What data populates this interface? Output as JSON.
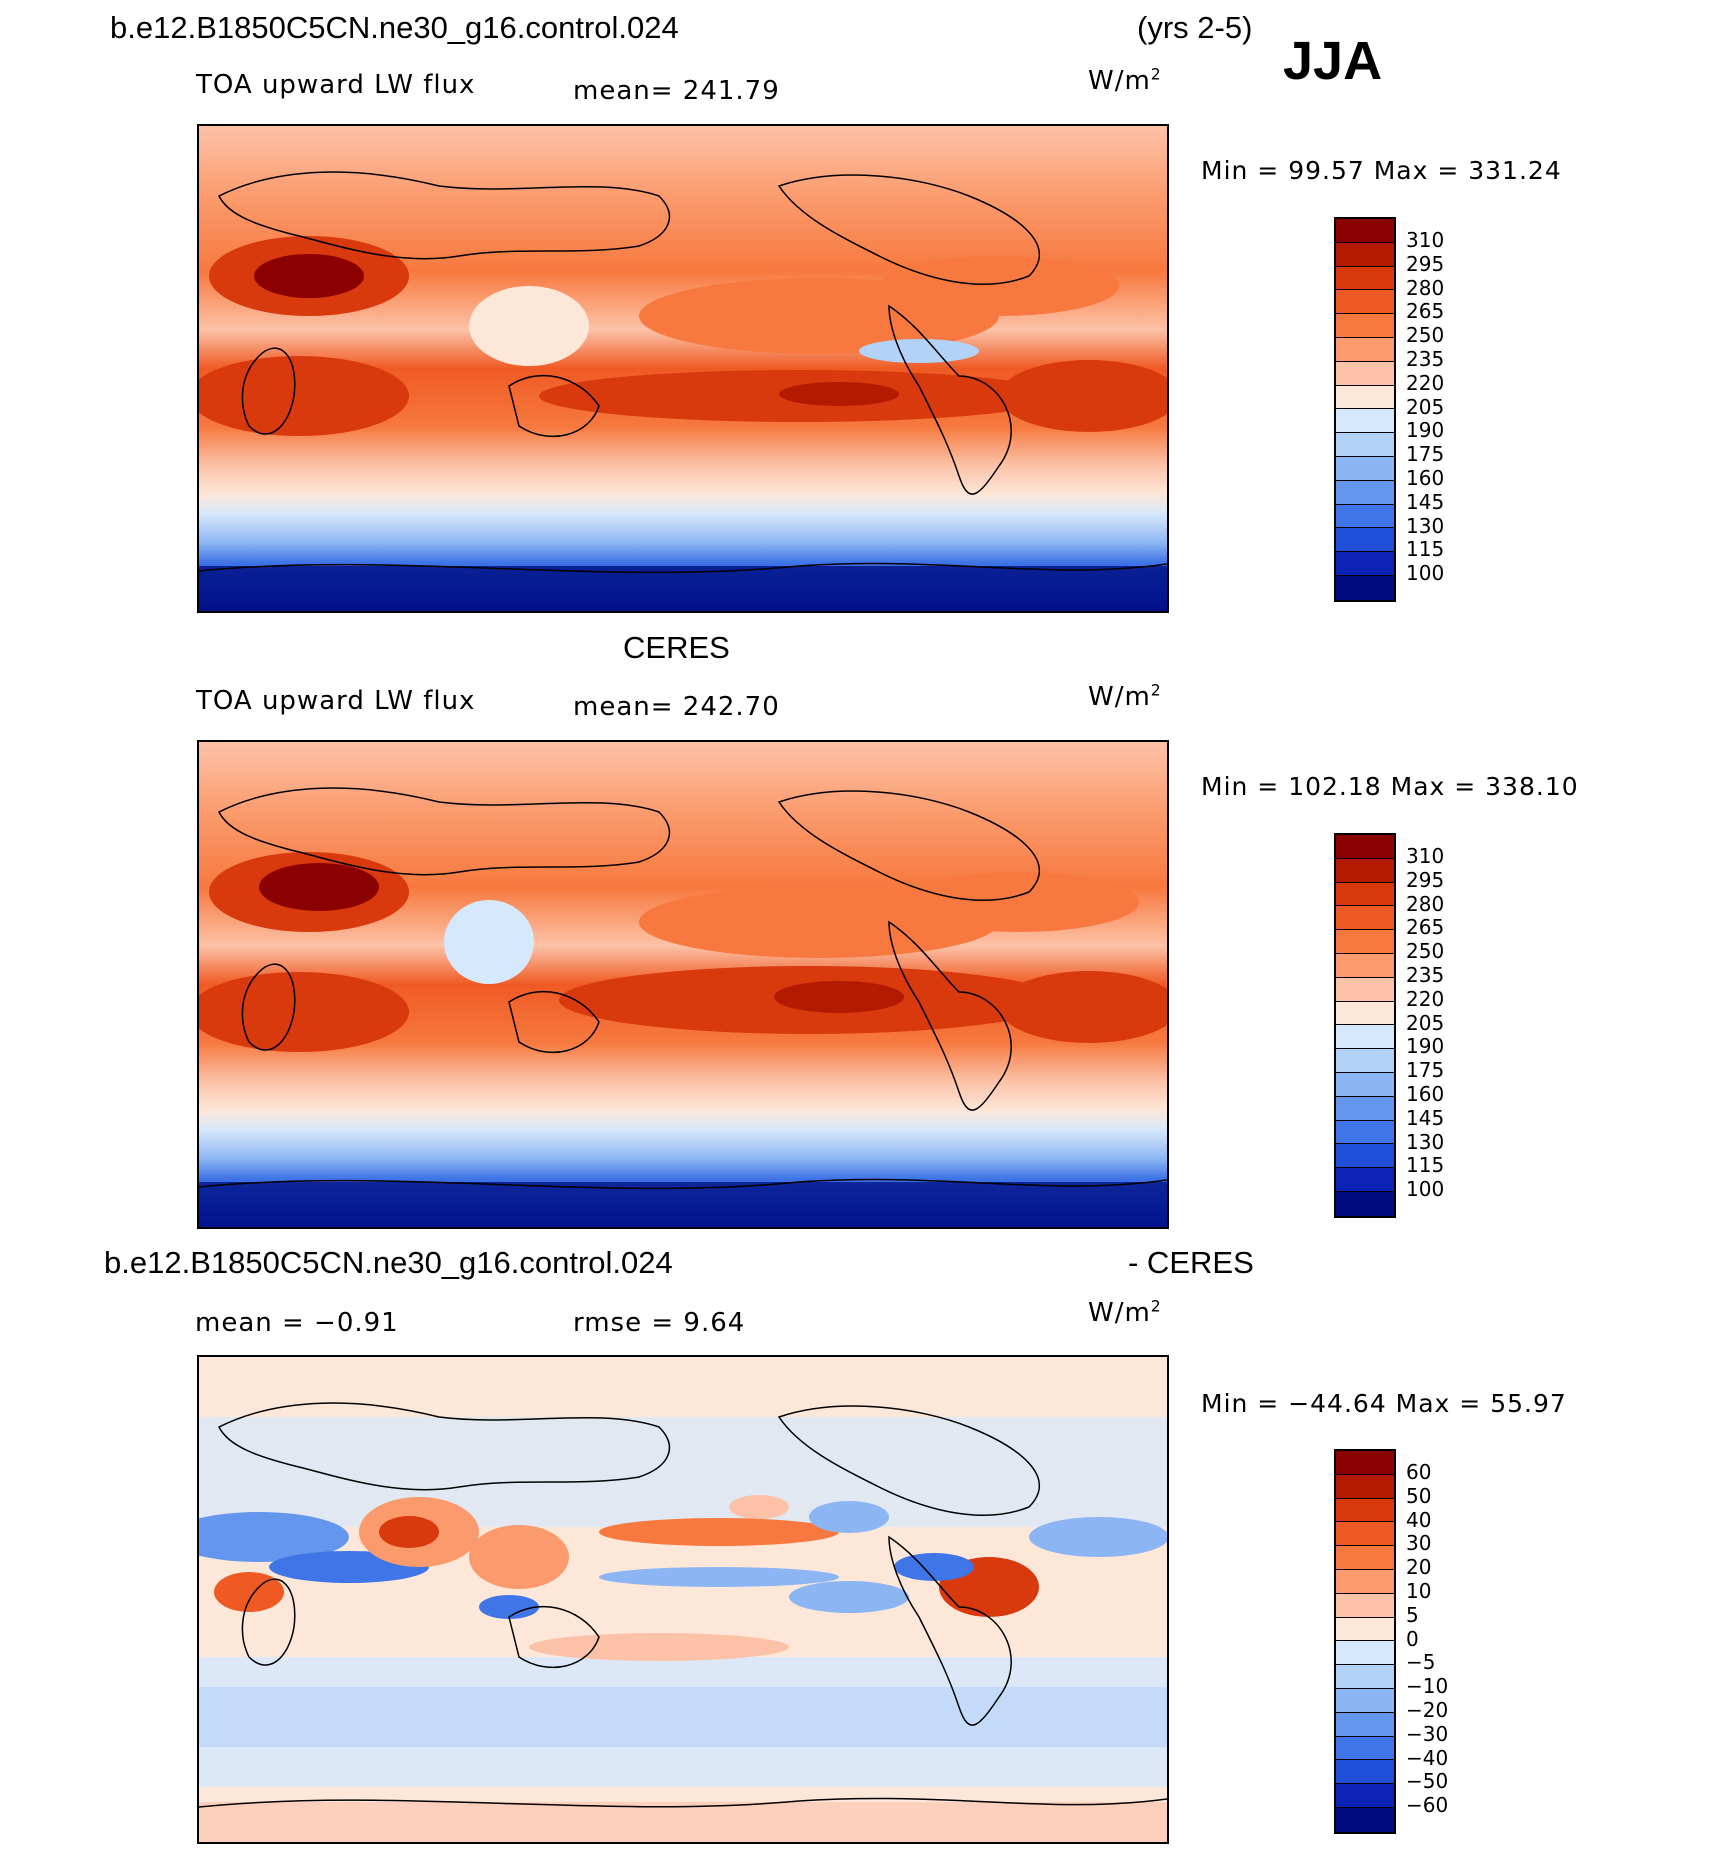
{
  "header": {
    "case_name": "b.e12.B1850C5CN.ne30_g16.control.024",
    "years": "(yrs 2-5)",
    "season": "JJA"
  },
  "panels": [
    {
      "id": "model",
      "title": "",
      "variable": "TOA upward LW flux",
      "mean_label": "mean= 241.79",
      "units": "W/m",
      "units_exp": "2",
      "minmax": "Min =   99.57 Max = 331.24",
      "colorbar_labels": [
        "310",
        "295",
        "280",
        "265",
        "250",
        "235",
        "220",
        "205",
        "190",
        "175",
        "160",
        "145",
        "130",
        "115",
        "100"
      ]
    },
    {
      "id": "obs",
      "title": "CERES",
      "variable": "TOA upward LW flux",
      "mean_label": "mean= 242.70",
      "units": "W/m",
      "units_exp": "2",
      "minmax": "Min = 102.18 Max = 338.10",
      "colorbar_labels": [
        "310",
        "295",
        "280",
        "265",
        "250",
        "235",
        "220",
        "205",
        "190",
        "175",
        "160",
        "145",
        "130",
        "115",
        "100"
      ]
    },
    {
      "id": "diff",
      "title_left": "b.e12.B1850C5CN.ne30_g16.control.024",
      "title_right": "- CERES",
      "mean_label": "mean =   −0.91",
      "rmse_label": "rmse =    9.64",
      "units": "W/m",
      "units_exp": "2",
      "minmax": "Min = −44.64 Max =   55.97",
      "colorbar_labels": [
        "60",
        "50",
        "40",
        "30",
        "20",
        "10",
        "5",
        "0",
        "−5",
        "−10",
        "−20",
        "−30",
        "−40",
        "−50",
        "−60"
      ]
    }
  ],
  "colors": {
    "abs_scale": [
      "#8b0000",
      "#b31a00",
      "#d83a0e",
      "#ef5a23",
      "#f7793f",
      "#fb9a6c",
      "#fcc2a8",
      "#fde7d9",
      "#d6e8fb",
      "#b3d2f8",
      "#8cb5f3",
      "#6496ee",
      "#3f75e6",
      "#1f4fd6",
      "#0c23b5",
      "#000c80"
    ],
    "diff_scale": [
      "#8b0000",
      "#b31a00",
      "#d83a0e",
      "#ef5a23",
      "#f7793f",
      "#fb9a6c",
      "#fcc2a8",
      "#fde7d9",
      "#d6e8fb",
      "#b3d2f8",
      "#8cb5f3",
      "#6496ee",
      "#3f75e6",
      "#1f4fd6",
      "#0c23b5",
      "#000c80"
    ]
  }
}
